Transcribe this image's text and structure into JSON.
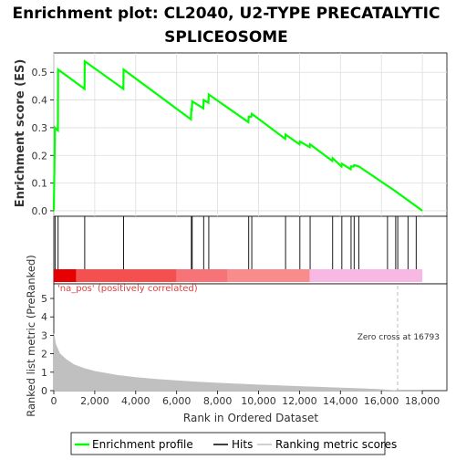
{
  "chart_data": {
    "type": "line",
    "title": "Enrichment plot: CL2040, U2-TYPE PRECATALYTIC SPLICEOSOME",
    "title_lines": [
      "Enrichment plot: CL2040, U2-TYPE PRECATALYTIC",
      "SPLICEOSOME"
    ],
    "enrichment_panel": {
      "ylabel": "Enrichment score (ES)",
      "ylim": [
        -0.02,
        0.57
      ],
      "yticks": [
        0.0,
        0.1,
        0.2,
        0.3,
        0.4,
        0.5
      ],
      "ytick_labels": [
        "0.0",
        "0.1",
        "0.2",
        "0.3",
        "0.4",
        "0.5"
      ],
      "grid": true,
      "series": [
        {
          "name": "Enrichment profile",
          "color": "#00ff00",
          "points": [
            [
              0,
              0.0
            ],
            [
              60,
              0.3
            ],
            [
              200,
              0.29
            ],
            [
              210,
              0.51
            ],
            [
              1500,
              0.44
            ],
            [
              1510,
              0.54
            ],
            [
              3400,
              0.44
            ],
            [
              3410,
              0.51
            ],
            [
              6700,
              0.33
            ],
            [
              6720,
              0.37
            ],
            [
              6740,
              0.36
            ],
            [
              6760,
              0.395
            ],
            [
              7300,
              0.37
            ],
            [
              7320,
              0.4
            ],
            [
              7550,
              0.39
            ],
            [
              7570,
              0.42
            ],
            [
              9500,
              0.32
            ],
            [
              9520,
              0.34
            ],
            [
              9650,
              0.34
            ],
            [
              9670,
              0.35
            ],
            [
              11300,
              0.26
            ],
            [
              11320,
              0.275
            ],
            [
              12000,
              0.24
            ],
            [
              12020,
              0.25
            ],
            [
              12500,
              0.23
            ],
            [
              12520,
              0.24
            ],
            [
              13600,
              0.18
            ],
            [
              13620,
              0.19
            ],
            [
              14050,
              0.16
            ],
            [
              14070,
              0.17
            ],
            [
              14500,
              0.15
            ],
            [
              14520,
              0.16
            ],
            [
              14650,
              0.16
            ],
            [
              14670,
              0.165
            ],
            [
              14900,
              0.16
            ],
            [
              16300,
              0.09
            ],
            [
              16700,
              0.07
            ],
            [
              18000,
              0.0
            ]
          ]
        }
      ]
    },
    "hits_panel": {
      "legend_label": "Hits",
      "hit_ranks": [
        60,
        210,
        1510,
        3410,
        6720,
        6760,
        7320,
        7570,
        9520,
        9670,
        11320,
        12020,
        12520,
        13620,
        14070,
        14520,
        14670,
        14900,
        16300,
        16700,
        16800,
        17300,
        17700
      ]
    },
    "ranking_panel": {
      "ylabel": "Ranked list metric (PreRanked)",
      "xlabel": "Rank in Ordered Dataset",
      "ylim": [
        0,
        5
      ],
      "yticks": [
        0,
        1,
        2,
        3,
        4,
        5
      ],
      "xlim": [
        0,
        19200
      ],
      "xticks": [
        0,
        2000,
        4000,
        6000,
        8000,
        10000,
        12000,
        14000,
        16000,
        18000
      ],
      "xtick_labels": [
        "0",
        "2,000",
        "4,000",
        "6,000",
        "8,000",
        "10,000",
        "12,000",
        "14,000",
        "16,000",
        "18,000"
      ],
      "annotation_na_pos": "'na_pos' (positively correlated)",
      "annotation_zero_cross": "Zero cross at 16793",
      "zero_cross": 16793,
      "series": [
        {
          "name": "Ranking metric scores",
          "color": "#c0c0c0",
          "points": [
            [
              0,
              3.1
            ],
            [
              100,
              2.5
            ],
            [
              300,
              2.0
            ],
            [
              600,
              1.7
            ],
            [
              1000,
              1.4
            ],
            [
              1500,
              1.2
            ],
            [
              2000,
              1.05
            ],
            [
              3000,
              0.85
            ],
            [
              4000,
              0.72
            ],
            [
              5000,
              0.62
            ],
            [
              6000,
              0.54
            ],
            [
              7000,
              0.47
            ],
            [
              8000,
              0.41
            ],
            [
              9000,
              0.36
            ],
            [
              10000,
              0.31
            ],
            [
              11000,
              0.27
            ],
            [
              12000,
              0.23
            ],
            [
              13000,
              0.19
            ],
            [
              14000,
              0.15
            ],
            [
              15000,
              0.11
            ],
            [
              16000,
              0.06
            ],
            [
              16793,
              0.0
            ],
            [
              18000,
              0.0
            ]
          ]
        }
      ],
      "color_bar": [
        {
          "from": 0,
          "to": 1100,
          "color": "#e60000"
        },
        {
          "from": 1100,
          "to": 6000,
          "color": "#f55050"
        },
        {
          "from": 6000,
          "to": 8500,
          "color": "#f67478"
        },
        {
          "from": 8500,
          "to": 12500,
          "color": "#f88c8c"
        },
        {
          "from": 12500,
          "to": 18000,
          "color": "#f8b8e4"
        }
      ]
    },
    "legend": {
      "items": [
        {
          "label": "Enrichment profile",
          "color": "#00ff00"
        },
        {
          "label": "Hits",
          "color": "#000000"
        },
        {
          "label": "Ranking metric scores",
          "color": "#c0c0c0"
        }
      ]
    }
  }
}
